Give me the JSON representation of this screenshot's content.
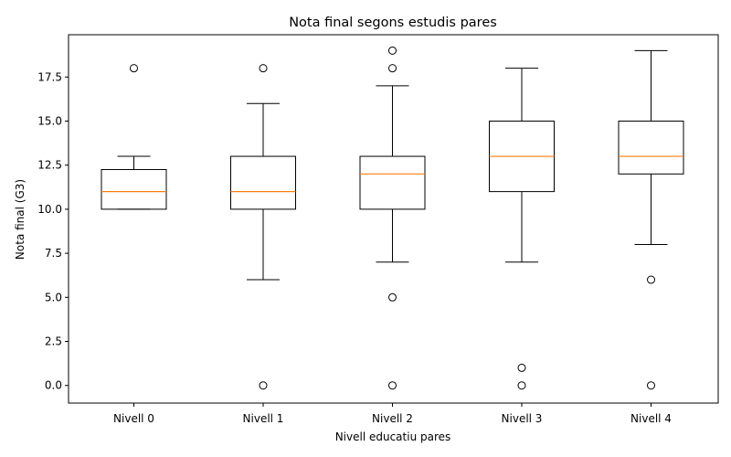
{
  "chart_data": {
    "type": "boxplot",
    "title": "Nota final segons estudis pares",
    "xlabel": "Nivell educatiu pares",
    "ylabel": "Nota final (G3)",
    "categories": [
      "Nivell 0",
      "Nivell 1",
      "Nivell 2",
      "Nivell 3",
      "Nivell 4"
    ],
    "ylim": [
      -1,
      19.9
    ],
    "yticks": [
      0.0,
      2.5,
      5.0,
      7.5,
      10.0,
      12.5,
      15.0,
      17.5
    ],
    "ytick_labels": [
      "0.0",
      "2.5",
      "5.0",
      "7.5",
      "10.0",
      "12.5",
      "15.0",
      "17.5"
    ],
    "grid": false,
    "box_color": "#000000",
    "median_color": "#ff7f0e",
    "boxes": [
      {
        "whisker_low": 10,
        "q1": 10,
        "median": 11,
        "q3": 12.25,
        "whisker_high": 13,
        "outliers": [
          18
        ]
      },
      {
        "whisker_low": 6,
        "q1": 10,
        "median": 11,
        "q3": 13,
        "whisker_high": 16,
        "outliers": [
          18,
          0
        ]
      },
      {
        "whisker_low": 7,
        "q1": 10,
        "median": 12,
        "q3": 13,
        "whisker_high": 17,
        "outliers": [
          19,
          18,
          5,
          0
        ]
      },
      {
        "whisker_low": 7,
        "q1": 11,
        "median": 13,
        "q3": 15,
        "whisker_high": 18,
        "outliers": [
          1,
          0
        ]
      },
      {
        "whisker_low": 8,
        "q1": 12,
        "median": 13,
        "q3": 15,
        "whisker_high": 19,
        "outliers": [
          6,
          0
        ]
      }
    ]
  }
}
